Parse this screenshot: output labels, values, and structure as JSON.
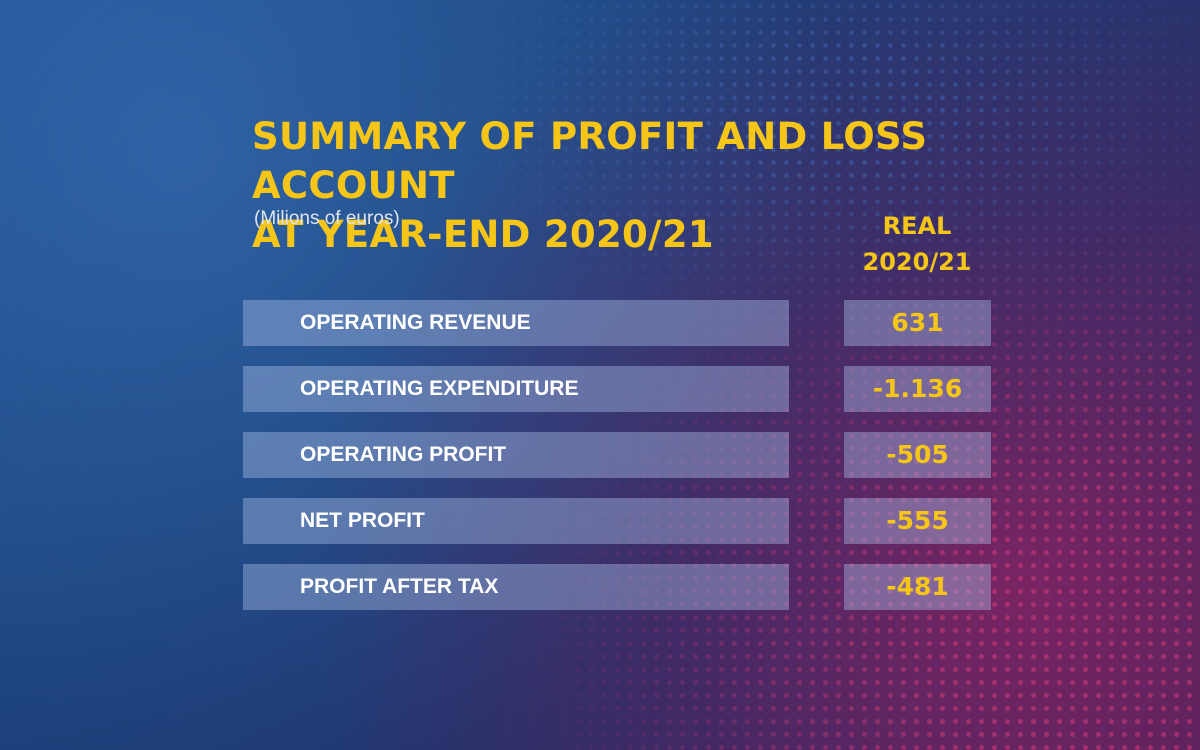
{
  "chart_data": {
    "type": "table",
    "title_lines": [
      "SUMMARY OF PROFIT AND LOSS ACCOUNT",
      "AT YEAR-END 2020/21"
    ],
    "subtitle": "(Milions of euros)",
    "column_header_lines": [
      "REAL",
      "2020/21"
    ],
    "rows": [
      {
        "label": "OPERATING REVENUE",
        "value": 631,
        "display": "631"
      },
      {
        "label": "OPERATING EXPENDITURE",
        "value": -1136,
        "display": "-1.136"
      },
      {
        "label": "OPERATING PROFIT",
        "value": -505,
        "display": "-505"
      },
      {
        "label": "NET PROFIT",
        "value": -555,
        "display": "-555"
      },
      {
        "label": "PROFIT AFTER TAX",
        "value": -481,
        "display": "-481"
      }
    ]
  },
  "colors": {
    "title": "#f5c518",
    "values": "#f5c518",
    "labels": "#ffffff",
    "background_blue": "#1f4f8f",
    "background_accent": "#b91e5f"
  }
}
